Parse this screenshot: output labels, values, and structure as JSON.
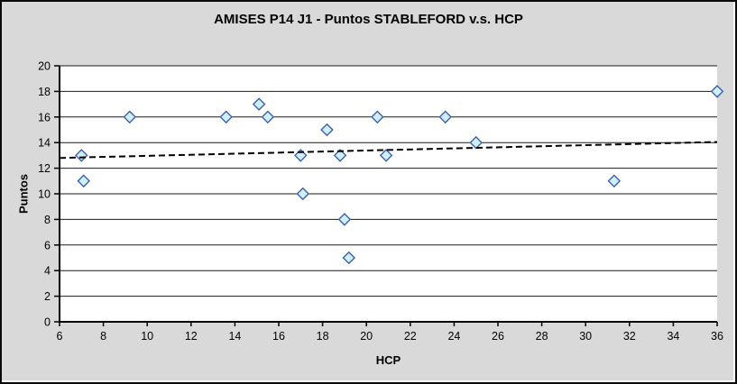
{
  "colors": {
    "background": "#d9d9d9",
    "plot_background": "#ffffff",
    "grid": "#1a1a1a",
    "axis": "#000000",
    "marker_fill": "#cdeefa",
    "marker_stroke": "#3f62a4",
    "trendline": "#000000",
    "text": "#000000"
  },
  "chart_data": {
    "type": "scatter",
    "title": "AMISES P14 J1 - Puntos STABLEFORD v.s. HCP",
    "xlabel": "HCP",
    "ylabel": "Puntos",
    "xlim": [
      6,
      36
    ],
    "ylim": [
      0,
      20
    ],
    "x_tick_step": 2,
    "y_tick_step": 2,
    "grid": "horizontal-only",
    "legend": "none",
    "series": [
      {
        "name": "Puntos STABLEFORD vs HCP",
        "type": "scatter",
        "marker": "diamond",
        "points": [
          [
            7.0,
            13
          ],
          [
            7.1,
            11
          ],
          [
            9.2,
            16
          ],
          [
            13.6,
            16
          ],
          [
            15.1,
            17
          ],
          [
            15.5,
            16
          ],
          [
            17.0,
            13
          ],
          [
            17.1,
            10
          ],
          [
            18.2,
            15
          ],
          [
            18.8,
            13
          ],
          [
            19.0,
            8
          ],
          [
            19.2,
            5
          ],
          [
            20.5,
            16
          ],
          [
            20.9,
            13
          ],
          [
            23.6,
            16
          ],
          [
            25.0,
            14
          ],
          [
            31.3,
            11
          ],
          [
            36.0,
            18
          ]
        ]
      },
      {
        "name": "trendline",
        "type": "line",
        "line_style": "dashed",
        "points": [
          [
            6,
            12.8
          ],
          [
            36,
            14.05
          ]
        ]
      }
    ]
  }
}
